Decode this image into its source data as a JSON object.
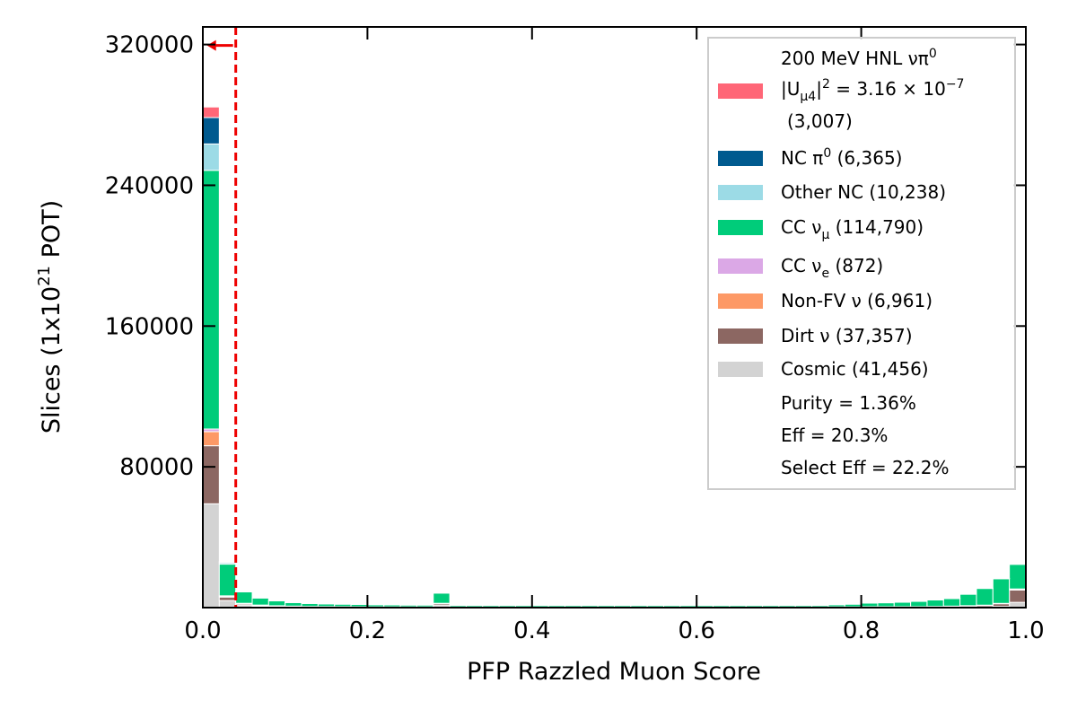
{
  "chart_data": {
    "type": "bar",
    "stacked": true,
    "title": "",
    "xlabel": "PFP Razzled Muon Score",
    "ylabel_main": "Slices (1x10",
    "ylabel_sup": "21",
    "ylabel_tail": " POT)",
    "xlim": [
      0,
      1
    ],
    "ylim": [
      0,
      320000
    ],
    "x_ticks": [
      0.0,
      0.2,
      0.4,
      0.6,
      0.8,
      1.0
    ],
    "x_tick_labels": [
      "0.0",
      "0.2",
      "0.4",
      "0.6",
      "0.8",
      "1.0"
    ],
    "y_ticks": [
      80000,
      160000,
      240000,
      320000
    ],
    "y_tick_labels": [
      "80000",
      "160000",
      "240000",
      "320000"
    ],
    "y_axis_top": 330000,
    "cut_value": 0.04,
    "cut_arrow_direction": "left",
    "grid": false,
    "legend_position": "top-right",
    "bin_edges": [
      0.0,
      0.02,
      0.04,
      0.06,
      0.08,
      0.1,
      0.12,
      0.14,
      0.16,
      0.18,
      0.2,
      0.22,
      0.24,
      0.26,
      0.28,
      0.3,
      0.32,
      0.34,
      0.36,
      0.38,
      0.4,
      0.42,
      0.44,
      0.46,
      0.48,
      0.5,
      0.52,
      0.54,
      0.56,
      0.58,
      0.6,
      0.62,
      0.64,
      0.66,
      0.68,
      0.7,
      0.72,
      0.74,
      0.76,
      0.78,
      0.8,
      0.82,
      0.84,
      0.86,
      0.88,
      0.9,
      0.92,
      0.94,
      0.96,
      0.98,
      1.0
    ],
    "series": [
      {
        "name": "Cosmic (41,456)",
        "color": "#d3d3d3",
        "values": [
          59000,
          4000,
          1500,
          800,
          600,
          500,
          400,
          350,
          300,
          300,
          250,
          250,
          250,
          250,
          1500,
          250,
          250,
          250,
          250,
          250,
          250,
          250,
          250,
          250,
          250,
          250,
          250,
          250,
          250,
          250,
          250,
          250,
          250,
          250,
          250,
          250,
          250,
          250,
          250,
          250,
          300,
          300,
          300,
          300,
          300,
          350,
          400,
          500,
          700,
          3000
        ]
      },
      {
        "name": "Dirt ν (37,357)",
        "color": "#8c6762",
        "values": [
          33000,
          2000,
          700,
          500,
          300,
          250,
          200,
          200,
          200,
          150,
          150,
          150,
          150,
          150,
          800,
          150,
          150,
          150,
          150,
          150,
          150,
          150,
          150,
          150,
          150,
          150,
          150,
          150,
          150,
          150,
          150,
          150,
          150,
          150,
          150,
          150,
          150,
          150,
          150,
          150,
          200,
          200,
          200,
          200,
          300,
          400,
          600,
          800,
          1500,
          7000
        ]
      },
      {
        "name": "Non-FV ν (6,961)",
        "color": "#fd9966",
        "values": [
          8000,
          500,
          200,
          100,
          100,
          50,
          50,
          50,
          50,
          50,
          50,
          50,
          50,
          50,
          100,
          50,
          50,
          50,
          50,
          50,
          50,
          50,
          50,
          50,
          50,
          50,
          50,
          50,
          50,
          50,
          50,
          50,
          50,
          50,
          50,
          50,
          50,
          50,
          50,
          50,
          50,
          50,
          50,
          50,
          50,
          100,
          100,
          100,
          200,
          500
        ]
      },
      {
        "name": "CC ν_e (872)",
        "color": "#dba8e6",
        "values": [
          1500,
          200,
          50,
          50,
          50,
          50,
          0,
          0,
          0,
          0,
          0,
          0,
          0,
          0,
          50,
          0,
          0,
          0,
          0,
          0,
          0,
          0,
          0,
          0,
          0,
          0,
          0,
          0,
          0,
          0,
          0,
          0,
          0,
          0,
          0,
          0,
          0,
          0,
          0,
          0,
          0,
          0,
          0,
          0,
          0,
          0,
          0,
          0,
          0,
          100
        ]
      },
      {
        "name": "CC ν_μ (114,790)",
        "color": "#00cc7a",
        "values": [
          147000,
          18000,
          6500,
          4000,
          2800,
          2000,
          1700,
          1500,
          1400,
          1300,
          1200,
          1100,
          1000,
          1000,
          5800,
          900,
          900,
          900,
          900,
          900,
          900,
          900,
          900,
          900,
          900,
          900,
          900,
          900,
          900,
          900,
          900,
          900,
          900,
          900,
          900,
          900,
          900,
          900,
          1200,
          1500,
          2000,
          2200,
          2500,
          3000,
          3700,
          4300,
          6500,
          9500,
          14000,
          14000
        ]
      },
      {
        "name": "Other NC (10,238)",
        "color": "#9cdbe6",
        "values": [
          15000,
          800,
          300,
          200,
          200,
          100,
          100,
          100,
          100,
          100,
          100,
          100,
          100,
          100,
          400,
          100,
          100,
          100,
          100,
          100,
          100,
          100,
          100,
          100,
          100,
          100,
          100,
          100,
          100,
          100,
          100,
          100,
          100,
          100,
          100,
          100,
          100,
          100,
          100,
          100,
          100,
          100,
          100,
          100,
          100,
          100,
          100,
          100,
          200,
          300
        ]
      },
      {
        "name": "NC π⁰ (6,365)",
        "color": "#005a8f",
        "values": [
          15000,
          500,
          200,
          100,
          100,
          50,
          50,
          50,
          50,
          50,
          50,
          50,
          50,
          50,
          100,
          50,
          50,
          50,
          50,
          50,
          50,
          50,
          50,
          50,
          50,
          50,
          50,
          50,
          50,
          50,
          50,
          50,
          50,
          50,
          50,
          50,
          50,
          50,
          50,
          50,
          50,
          50,
          50,
          50,
          50,
          50,
          50,
          50,
          50,
          100
        ]
      },
      {
        "name": "200 MeV HNL νπ⁰ |U_μ4|² = 3.16 × 10⁻⁷ (3,007)",
        "color": "#ff6677",
        "values": [
          6000,
          200,
          50,
          50,
          0,
          0,
          0,
          0,
          0,
          0,
          0,
          0,
          0,
          0,
          50,
          0,
          0,
          0,
          0,
          0,
          0,
          0,
          0,
          0,
          0,
          0,
          0,
          0,
          0,
          0,
          0,
          0,
          0,
          0,
          0,
          0,
          0,
          0,
          0,
          0,
          0,
          0,
          0,
          0,
          0,
          0,
          0,
          0,
          0,
          0
        ]
      }
    ],
    "legend": {
      "hnl_line1_text": "200 MeV HNL νπ",
      "hnl_line1_sup": "0",
      "hnl_line2_a": "|U",
      "hnl_line2_sub": "μ4",
      "hnl_line2_b": "|",
      "hnl_line2_sup1": "2",
      "hnl_line2_c": " = 3.16 × 10",
      "hnl_line2_sup2": "−7",
      "hnl_line3": "(3,007)",
      "ncpi0_a": "NC π",
      "ncpi0_sup": "0",
      "ncpi0_b": " (6,365)",
      "other_nc": "Other NC (10,238)",
      "ccnumu_a": "CC ν",
      "ccnumu_sub": "μ",
      "ccnumu_b": " (114,790)",
      "ccnue_a": "CC ν",
      "ccnue_sub": "e",
      "ccnue_b": " (872)",
      "nonfv": "Non-FV ν (6,961)",
      "dirt": "Dirt ν (37,357)",
      "cosmic": "Cosmic (41,456)",
      "purity": "Purity = 1.36%",
      "eff": "Eff = 20.3%",
      "select_eff": "Select Eff = 22.2%"
    },
    "legend_colors": {
      "hnl": "#ff6677",
      "ncpi0": "#005a8f",
      "other_nc": "#9cdbe6",
      "ccnumu": "#00cc7a",
      "ccnue": "#dba8e6",
      "nonfv": "#fd9966",
      "dirt": "#8c6762",
      "cosmic": "#d3d3d3"
    },
    "cut_color": "#ee0000"
  }
}
